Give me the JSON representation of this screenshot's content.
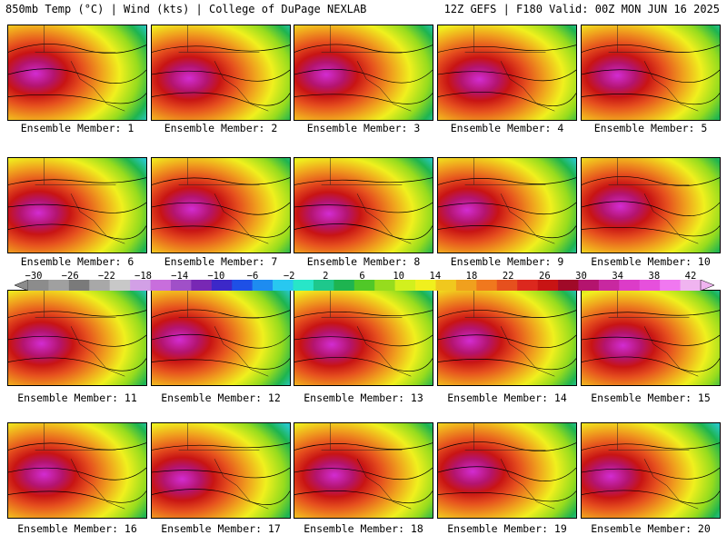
{
  "header": {
    "left_title": "850mb Temp (°C) | Wind (kts) | College of DuPage NEXLAB",
    "right_title": "12Z GEFS | F180 Valid: 00Z MON JUN 16 2025"
  },
  "members": [
    {
      "label": "Ensemble Member: 1"
    },
    {
      "label": "Ensemble Member: 2"
    },
    {
      "label": "Ensemble Member: 3"
    },
    {
      "label": "Ensemble Member: 4"
    },
    {
      "label": "Ensemble Member: 5"
    },
    {
      "label": "Ensemble Member: 6"
    },
    {
      "label": "Ensemble Member: 7"
    },
    {
      "label": "Ensemble Member: 8"
    },
    {
      "label": "Ensemble Member: 9"
    },
    {
      "label": "Ensemble Member: 10"
    },
    {
      "label": "Ensemble Member: 11"
    },
    {
      "label": "Ensemble Member: 12"
    },
    {
      "label": "Ensemble Member: 13"
    },
    {
      "label": "Ensemble Member: 14"
    },
    {
      "label": "Ensemble Member: 15"
    },
    {
      "label": "Ensemble Member: 16"
    },
    {
      "label": "Ensemble Member: 17"
    },
    {
      "label": "Ensemble Member: 18"
    },
    {
      "label": "Ensemble Member: 19"
    },
    {
      "label": "Ensemble Member: 20"
    }
  ],
  "colorbar": {
    "ticks": [
      "−30",
      "−26",
      "−22",
      "−18",
      "−14",
      "−10",
      "−6",
      "−2",
      "2",
      "6",
      "10",
      "14",
      "18",
      "22",
      "26",
      "30",
      "34",
      "38",
      "42"
    ],
    "colors": [
      "#8c8c8c",
      "#a0a0a0",
      "#7a7a7a",
      "#a8a8a8",
      "#c8c8c8",
      "#d2a0e6",
      "#c86edc",
      "#a050c8",
      "#7828b4",
      "#3c28c8",
      "#1e50e6",
      "#1e8cf0",
      "#28c8f0",
      "#28e6c8",
      "#1ec88c",
      "#1eb450",
      "#50c828",
      "#96dc1e",
      "#d2f01e",
      "#f0f01e",
      "#f0c81e",
      "#f0a01e",
      "#f0781e",
      "#e6501e",
      "#dc281e",
      "#c81414",
      "#a00a28",
      "#b4146e",
      "#c828a0",
      "#dc3cc8",
      "#e650dc",
      "#f078f0",
      "#f0b4f0"
    ]
  }
}
